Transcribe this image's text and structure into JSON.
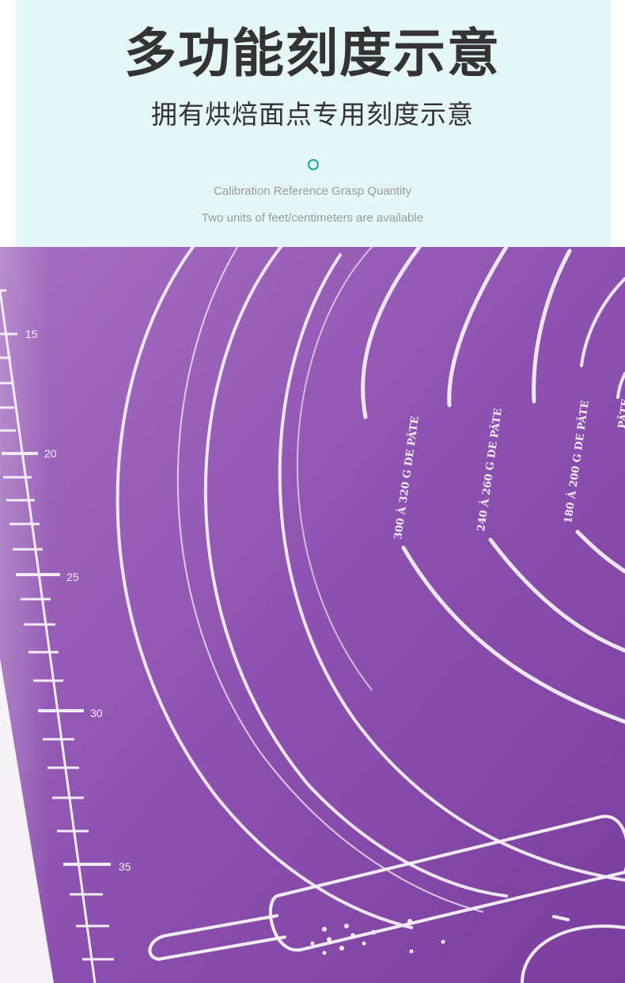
{
  "header": {
    "title": "多功能刻度示意",
    "subtitle": "拥有烘焙面点专用刻度示意",
    "caption_line1": "Calibration Reference Grasp Quantity",
    "caption_line2": "Two units of feet/centimeters are available"
  },
  "mat": {
    "ruler_labels": [
      "15",
      "20",
      "25",
      "30",
      "35"
    ],
    "dough_labels": [
      "300 À 320 G DE PÂTE",
      "240 À 260 G DE PÂTE",
      "180 À 200 G DE PÂTE",
      "PÂTE"
    ],
    "colors": {
      "mat_purple": "#8b4fad",
      "mat_light": "#a978c4",
      "line_white": "#f2ecf6",
      "accent_teal": "#1aa7a3",
      "header_bg": "#e5f6f7"
    },
    "icons": [
      "rolling-pin-icon"
    ]
  }
}
